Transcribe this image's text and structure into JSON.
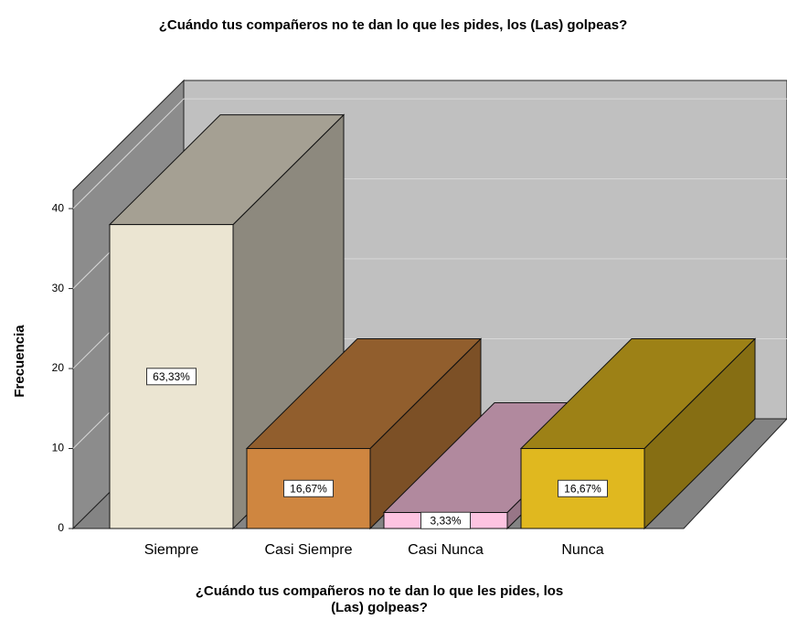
{
  "chart_data": {
    "type": "bar3d",
    "title": "¿Cuándo tus compañeros no te dan lo que les pides, los (Las) golpeas?",
    "x_label": [
      "¿Cuándo tus compañeros no te dan lo que les pides, los",
      "(Las) golpeas?"
    ],
    "y_label": "Frecuencia",
    "categories": [
      "Siempre",
      "Casi Siempre",
      "Casi Nunca",
      "Nunca"
    ],
    "values": [
      38,
      10,
      2,
      10
    ],
    "percentages": [
      63.33,
      16.67,
      3.33,
      16.67
    ],
    "percentage_labels": [
      "63,33%",
      "16,67%",
      "3,33%",
      "16,67%"
    ],
    "colors": [
      "#ebe5d2",
      "#cf8640",
      "#fdc4e1",
      "#e0b81f"
    ],
    "ylim": [
      0,
      42.3
    ],
    "yticks": [
      0,
      10,
      20,
      30,
      40
    ],
    "grid": true
  }
}
